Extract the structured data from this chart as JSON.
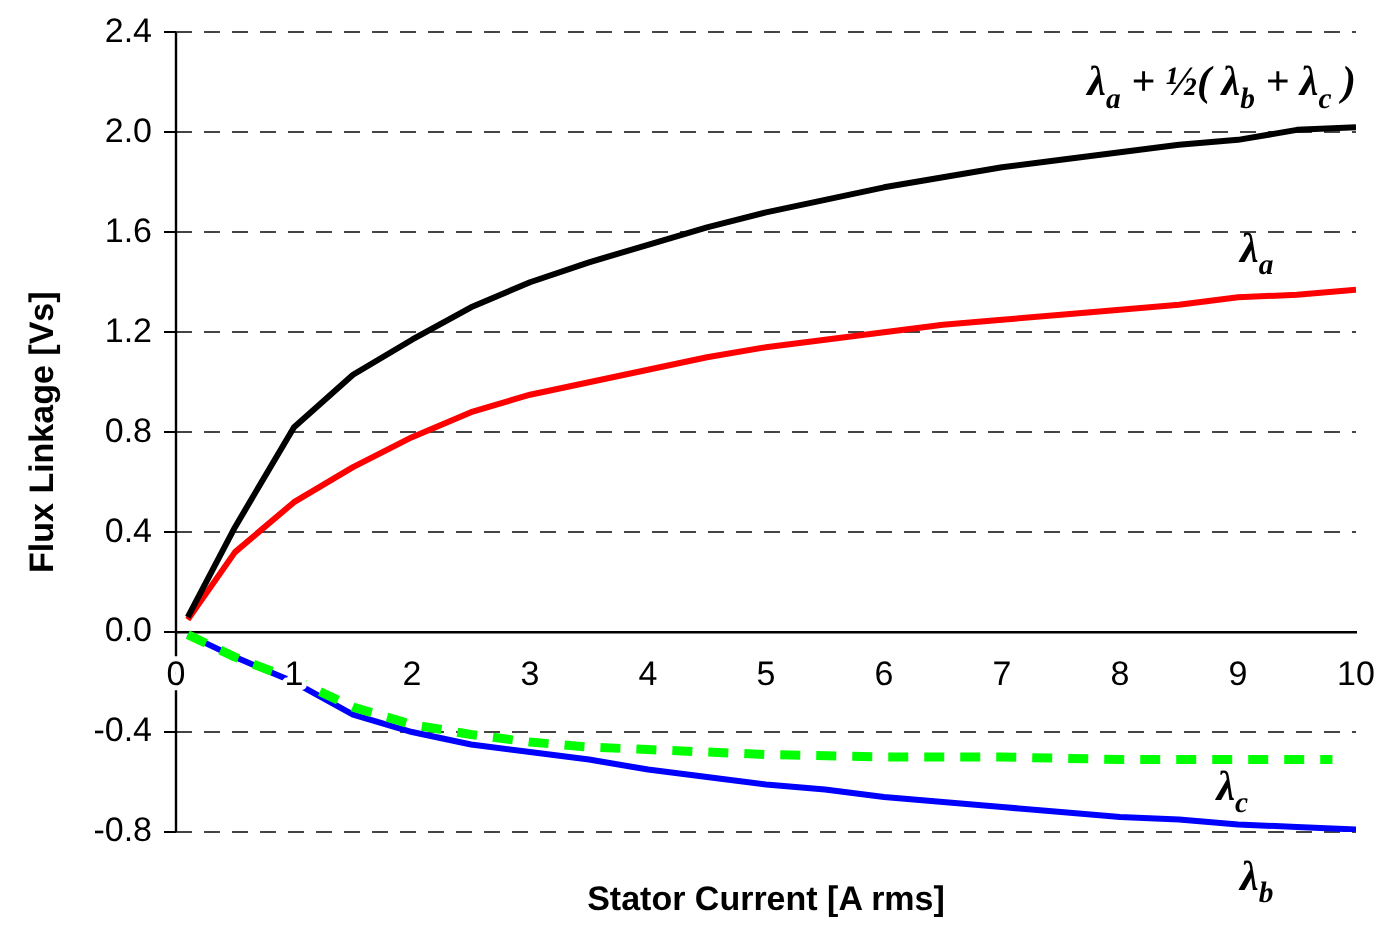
{
  "chart_data": {
    "type": "line",
    "xlabel": "Stator Current [A rms]",
    "ylabel": "Flux Linkage [Vs]",
    "xlim": [
      0,
      10
    ],
    "xticks": [
      0,
      1,
      2,
      3,
      4,
      5,
      6,
      7,
      8,
      9,
      10
    ],
    "ylim": [
      -0.8,
      2.4
    ],
    "yticks": [
      {
        "value": -0.8,
        "label": "-0.8"
      },
      {
        "value": -0.4,
        "label": "-0.4"
      },
      {
        "value": 0,
        "label": "0.0"
      },
      {
        "value": 0.4,
        "label": "0.4"
      },
      {
        "value": 0.8,
        "label": "0.8"
      },
      {
        "value": 1.2,
        "label": "1.2"
      },
      {
        "value": 1.6,
        "label": "1.6"
      },
      {
        "value": 2.0,
        "label": "2.0"
      },
      {
        "value": 2.4,
        "label": "2.4"
      }
    ],
    "grid": "y",
    "legend": false,
    "marker": "none",
    "series": [
      {
        "name": "λ$_{a}$ + ½( λ$_{b}$ + λ$_{c}$ )",
        "color": "#000000",
        "line_style": "solid",
        "x": [
          0.1,
          0.5,
          1,
          1.5,
          2,
          2.5,
          3,
          3.5,
          4,
          4.5,
          5,
          5.5,
          6,
          6.5,
          7,
          7.5,
          8,
          8.5,
          9,
          9.5,
          10
        ],
        "values": [
          0.06,
          0.42,
          0.82,
          1.03,
          1.17,
          1.3,
          1.4,
          1.48,
          1.55,
          1.62,
          1.68,
          1.73,
          1.78,
          1.82,
          1.86,
          1.89,
          1.92,
          1.95,
          1.97,
          2.01,
          2.02
        ]
      },
      {
        "name": "λ$_{a}$",
        "color": "#ff0000",
        "line_style": "solid",
        "x": [
          0.1,
          0.5,
          1,
          1.5,
          2,
          2.5,
          3,
          3.5,
          4,
          4.5,
          5,
          5.5,
          6,
          6.5,
          7,
          7.5,
          8,
          8.5,
          9,
          9.5,
          10
        ],
        "values": [
          0.05,
          0.32,
          0.52,
          0.66,
          0.78,
          0.88,
          0.95,
          1.0,
          1.05,
          1.1,
          1.14,
          1.17,
          1.2,
          1.23,
          1.25,
          1.27,
          1.29,
          1.31,
          1.34,
          1.35,
          1.37
        ]
      },
      {
        "name": "λ$_{c}$",
        "color": "#00ff00",
        "line_style": "dashed",
        "x": [
          0.1,
          0.5,
          1,
          1.5,
          2,
          2.5,
          3,
          3.5,
          4,
          5,
          6,
          7,
          8,
          9,
          9.8
        ],
        "values": [
          -0.01,
          -0.1,
          -0.19,
          -0.3,
          -0.37,
          -0.41,
          -0.44,
          -0.46,
          -0.47,
          -0.49,
          -0.5,
          -0.5,
          -0.51,
          -0.51,
          -0.51
        ]
      },
      {
        "name": "λ$_{b}$",
        "color": "#0000ff",
        "line_style": "solid",
        "x": [
          0.1,
          0.5,
          1,
          1.5,
          2,
          2.5,
          3,
          3.5,
          4,
          4.5,
          5,
          5.5,
          6,
          6.5,
          7,
          7.5,
          8,
          8.5,
          9,
          9.5,
          10
        ],
        "values": [
          -0.01,
          -0.1,
          -0.2,
          -0.33,
          -0.4,
          -0.45,
          -0.48,
          -0.51,
          -0.55,
          -0.58,
          -0.61,
          -0.63,
          -0.66,
          -0.68,
          -0.7,
          -0.72,
          -0.74,
          -0.75,
          -0.77,
          -0.78,
          -0.79
        ]
      }
    ]
  }
}
